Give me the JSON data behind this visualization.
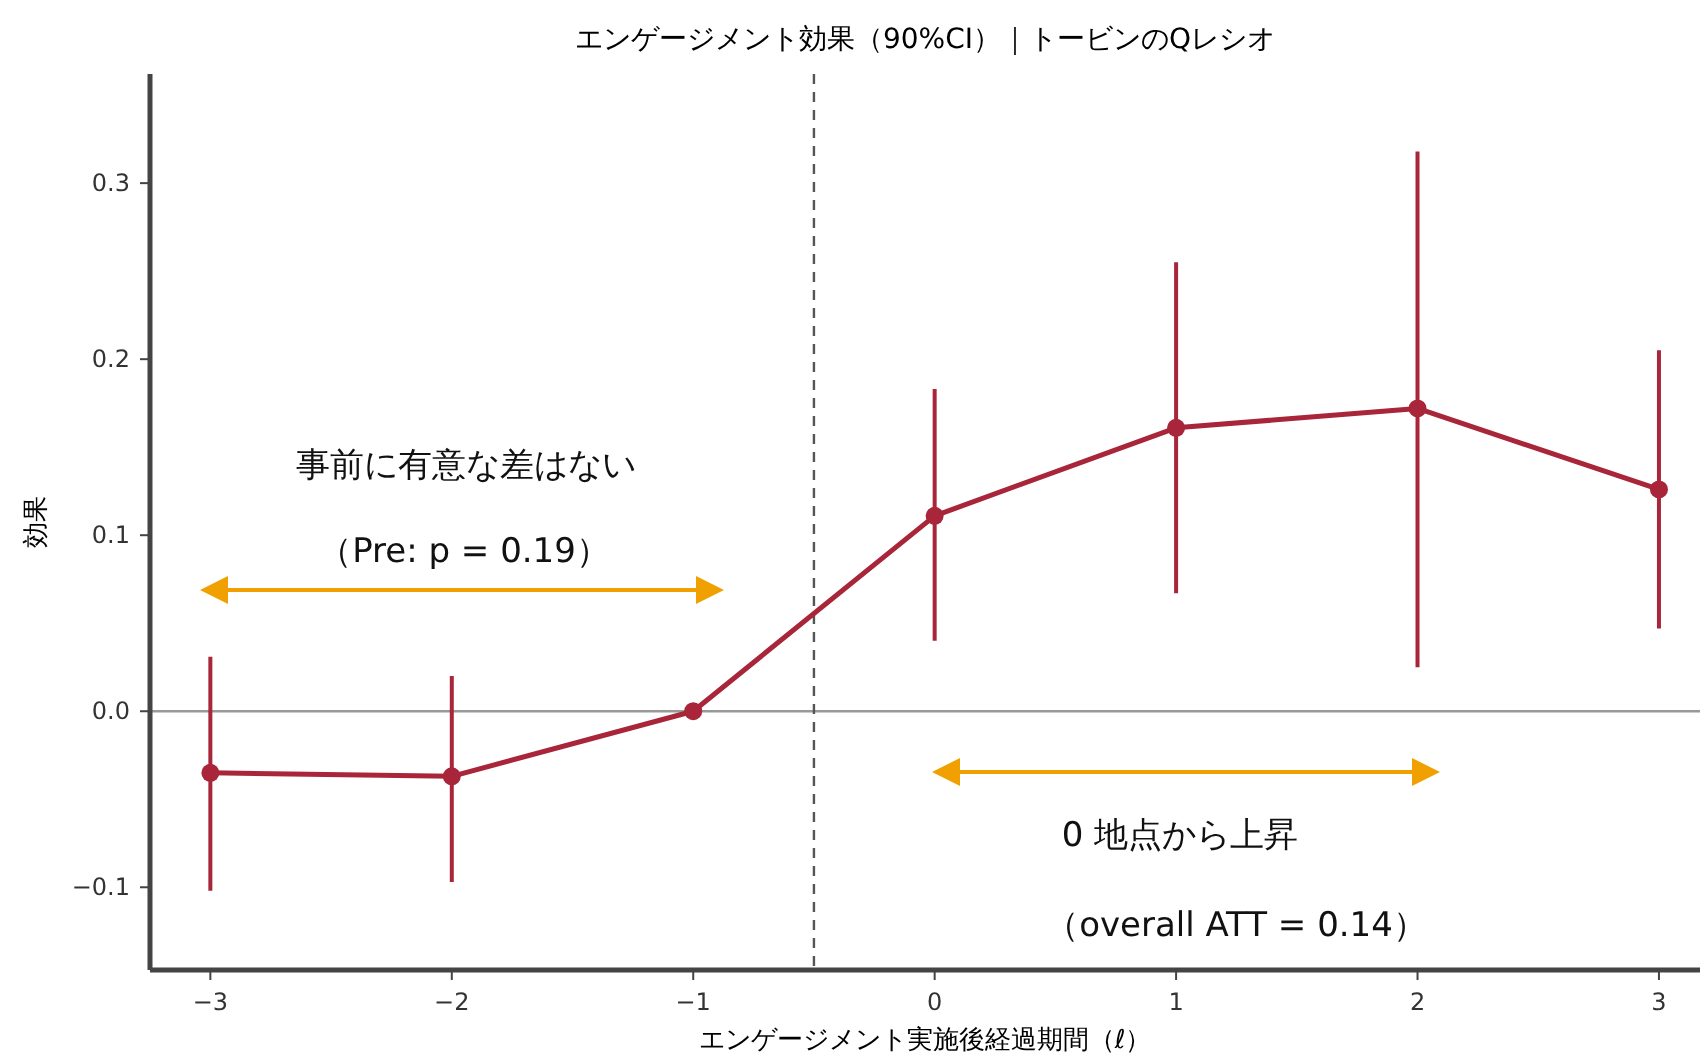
{
  "chart_data": {
    "type": "line",
    "title": "エンゲージメント効果（90%CI）｜トービンのQレシオ",
    "xlabel": "エンゲージメント実施後経過期間（ℓ）",
    "ylabel": "効果",
    "x": [
      -3,
      -2,
      -1,
      0,
      1,
      2,
      3
    ],
    "series": [
      {
        "color": "#a8253a",
        "values": [
          -0.035,
          -0.037,
          0.0,
          0.111,
          0.161,
          0.172,
          0.126
        ],
        "errors": [
          [
            -0.102,
            0.031
          ],
          [
            -0.097,
            0.02
          ],
          null,
          [
            0.04,
            0.183
          ],
          [
            0.067,
            0.255
          ],
          [
            0.025,
            0.318
          ],
          [
            0.047,
            0.205
          ]
        ]
      }
    ],
    "xlim": [
      -3.25,
      3.17
    ],
    "ylim": [
      -0.147,
      0.362
    ],
    "xticks": [
      {
        "value": -3,
        "label": "−3"
      },
      {
        "value": -2,
        "label": "−2"
      },
      {
        "value": -1,
        "label": "−1"
      },
      0,
      1,
      2,
      3
    ],
    "yticks": [
      {
        "value": -0.1,
        "label": "−0.1"
      },
      {
        "value": 0,
        "label": "0.0"
      },
      0.1,
      0.2,
      0.3
    ],
    "ref_lines": [
      {
        "axis": "y",
        "value": 0,
        "color": "#999999",
        "line_style": "solid"
      },
      {
        "axis": "x",
        "value": -0.5,
        "color": "#555555",
        "line_style": "dashed"
      }
    ],
    "annotations": [
      "事前に有意な差はない",
      "（Pre: p = 0.19）",
      "0 地点から上昇",
      "（overall ATT = 0.14）"
    ],
    "marker": "circle",
    "line_style": "solid",
    "grid": false
  }
}
